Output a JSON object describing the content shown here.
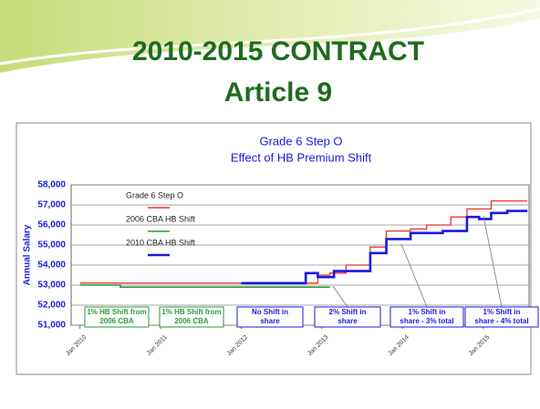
{
  "slide": {
    "title": "2010-2015 CONTRACT",
    "subtitle": "Article 9"
  },
  "chart_data": {
    "type": "line",
    "step": true,
    "title": "Grade 6 Step O",
    "subtitle": "Effect of HB Premium Shift",
    "y_label": "Annual Salary",
    "xlim": [
      2009.89,
      2015.57
    ],
    "xticks": [
      {
        "value": 2010,
        "label": "Jan 2010"
      },
      {
        "value": 2011,
        "label": "Jan 2011"
      },
      {
        "value": 2012,
        "label": "Jan 2012"
      },
      {
        "value": 2013,
        "label": "Jan 2013"
      },
      {
        "value": 2014,
        "label": "Jan 2014"
      },
      {
        "value": 2015,
        "label": "Jan 2015"
      }
    ],
    "ylim": [
      51000,
      58000
    ],
    "yticks": [
      {
        "value": 51000,
        "label": "51,000"
      },
      {
        "value": 52000,
        "label": "52,000"
      },
      {
        "value": 53000,
        "label": "53,000"
      },
      {
        "value": 54000,
        "label": "54,000"
      },
      {
        "value": 55000,
        "label": "55,000"
      },
      {
        "value": 56000,
        "label": "56,000"
      },
      {
        "value": 57000,
        "label": "57,000"
      },
      {
        "value": 58000,
        "label": "58,000"
      }
    ],
    "grid": true,
    "series": [
      {
        "name": "Grade 6 Step O",
        "color": "#e8332a",
        "width": 1.3,
        "x": [
          2010,
          2012.95,
          2013.1,
          2013.3,
          2013.6,
          2013.8,
          2014.1,
          2014.3,
          2014.6,
          2014.8,
          2015.1,
          2015.55
        ],
        "values": [
          53100,
          53500,
          53600,
          54000,
          54900,
          55700,
          55800,
          56000,
          56400,
          56800,
          57200,
          57200
        ]
      },
      {
        "name": "2006 CBA HB Shift",
        "color": "#2e9a3a",
        "width": 1.6,
        "x": [
          2010,
          2010.5,
          2013.1
        ],
        "values": [
          53000,
          52900,
          52900
        ]
      },
      {
        "name": "2010 CBA HB Shift",
        "color": "#1a1adf",
        "width": 2.6,
        "x": [
          2012,
          2012.8,
          2012.95,
          2013.15,
          2013.6,
          2013.8,
          2014.1,
          2014.5,
          2014.8,
          2014.95,
          2015.1,
          2015.3,
          2015.55
        ],
        "values": [
          53100,
          53600,
          53400,
          53700,
          54600,
          55300,
          55600,
          55700,
          56400,
          56300,
          56600,
          56700,
          56700
        ]
      }
    ],
    "annotations": [
      {
        "lines": [
          "1% HB Shift from",
          "2006 CBA"
        ],
        "color": "#2e9a3a"
      },
      {
        "lines": [
          "1% HB Shift from",
          "2006 CBA"
        ],
        "color": "#2e9a3a"
      },
      {
        "lines": [
          "No Shift in",
          "share"
        ],
        "color": "#1a1adf"
      },
      {
        "lines": [
          "2% Shift in",
          "share"
        ],
        "color": "#1a1adf"
      },
      {
        "lines": [
          "1% Shift in",
          "share - 3% total"
        ],
        "color": "#1a1adf"
      },
      {
        "lines": [
          "1% Shift in",
          "share - 4% total"
        ],
        "color": "#1a1adf"
      }
    ]
  }
}
